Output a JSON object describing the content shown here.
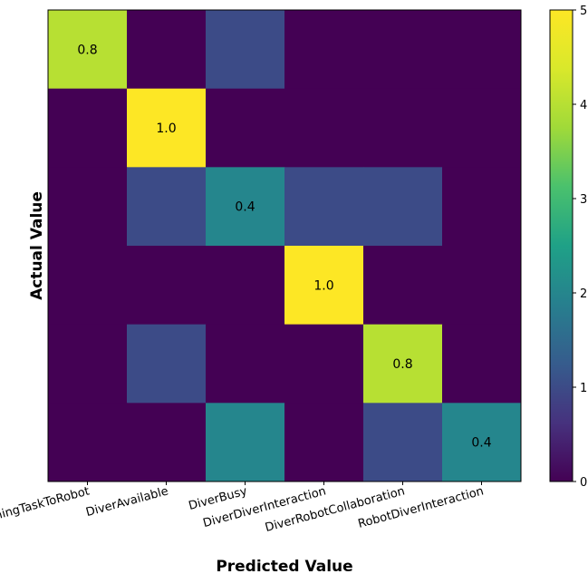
{
  "chart_data": {
    "type": "heatmap",
    "title": "",
    "xlabel": "Predicted Value",
    "ylabel": "Actual Value",
    "x_categories": [
      "DiverAssigningTaskToRobot",
      "DiverAvailable",
      "DiverBusy",
      "DiverDiverInteraction",
      "DiverRobotCollaboration",
      "RobotDiverInteraction"
    ],
    "y_categories": [],
    "counts": [
      [
        4,
        0,
        1,
        0,
        0,
        0
      ],
      [
        0,
        5,
        0,
        0,
        0,
        0
      ],
      [
        0,
        1,
        2,
        1,
        1,
        0
      ],
      [
        0,
        0,
        0,
        5,
        0,
        0
      ],
      [
        0,
        1,
        0,
        0,
        4,
        0
      ],
      [
        0,
        0,
        2,
        0,
        1,
        2
      ]
    ],
    "annotations": [
      {
        "row": 0,
        "col": 0,
        "text": "0.8"
      },
      {
        "row": 1,
        "col": 1,
        "text": "1.0"
      },
      {
        "row": 2,
        "col": 2,
        "text": "0.4"
      },
      {
        "row": 3,
        "col": 3,
        "text": "1.0"
      },
      {
        "row": 4,
        "col": 4,
        "text": "0.8"
      },
      {
        "row": 5,
        "col": 5,
        "text": "0.4"
      }
    ],
    "colormap": "viridis",
    "color_range": [
      0,
      5
    ],
    "colorbar_ticks": [
      "0",
      "1",
      "2",
      "3",
      "4",
      "5"
    ],
    "colorbar_position": "right",
    "grid": false
  }
}
